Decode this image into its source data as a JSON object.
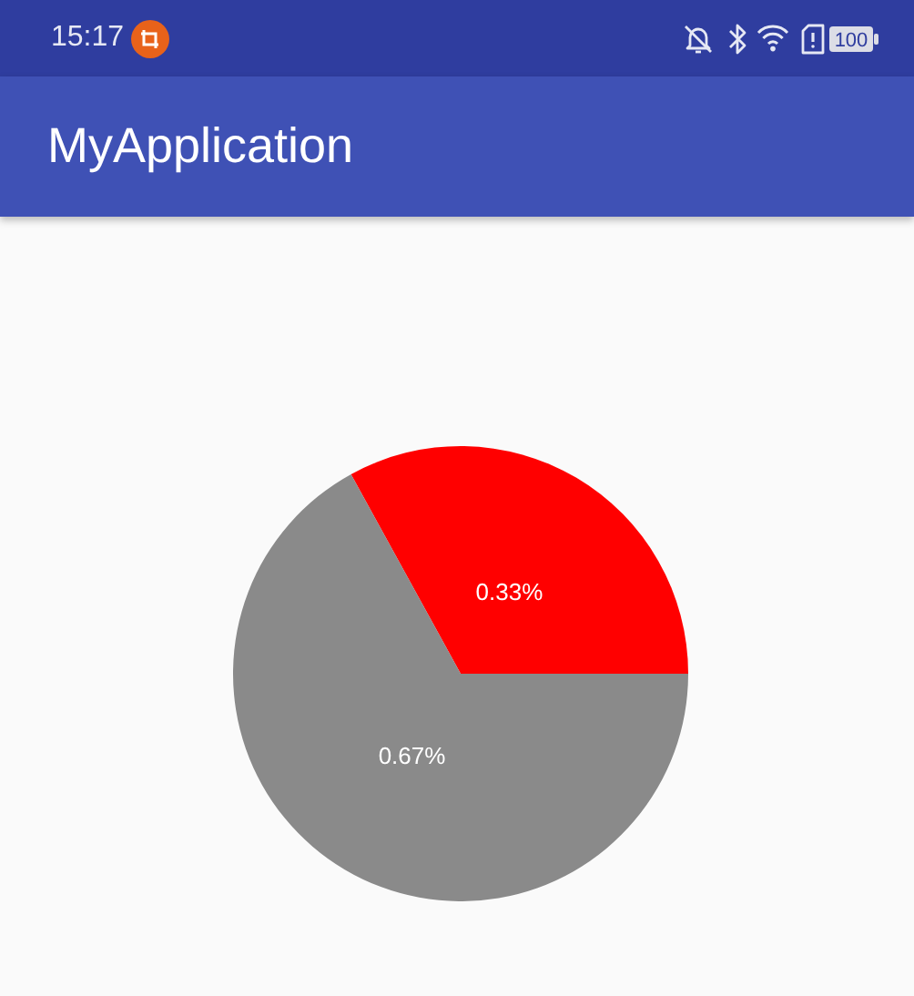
{
  "chart_data": {
    "type": "pie",
    "title": "MyApplication",
    "categories": [
      null,
      null
    ],
    "values": [
      0.33,
      0.67
    ],
    "colors": [
      "#ff0000",
      "#8a8a8a"
    ],
    "value_labels": [
      "0.33%",
      "0.67%"
    ],
    "annotations": [
      "15:17",
      "100"
    ]
  }
}
